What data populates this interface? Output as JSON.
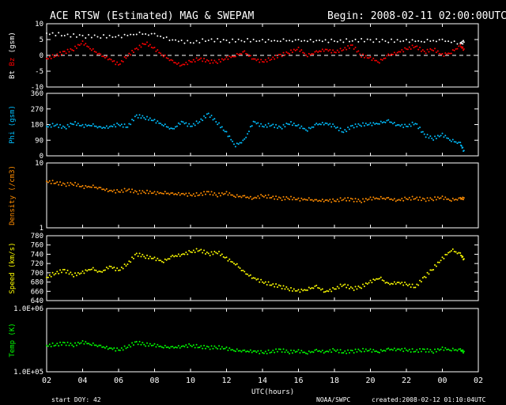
{
  "header": {
    "title": "ACE RTSW (Estimated) MAG & SWEPAM",
    "begin": "Begin: 2008-02-11 02:00:00UTC"
  },
  "footer": {
    "start_doy": "start DOY:  42",
    "credit": "NOAA/SWPC",
    "created": "created:2008-02-12 01:10:04UTC"
  },
  "colors": {
    "background": "#000000",
    "frame": "#ffffff",
    "bt": "#ffffff",
    "bz": "#ff0000",
    "phi": "#00bfff",
    "density": "#ff8c00",
    "speed": "#ffff00",
    "temp": "#00ff00"
  },
  "chart_data": [
    {
      "type": "scatter",
      "panel": "mag",
      "ylabel_parts": [
        "Bt",
        "Bz",
        "(gsm)"
      ],
      "ylim": [
        -10,
        10
      ],
      "yticks": [
        "10",
        "5",
        "0",
        "-5",
        "-10"
      ],
      "zero_line": "dashed",
      "series": [
        {
          "name": "Bt",
          "color": "#ffffff",
          "x": [
            2,
            3,
            4,
            5,
            6,
            7,
            8,
            9,
            10,
            11,
            12,
            13,
            14,
            15,
            16,
            17,
            18,
            19,
            20,
            21,
            22,
            23,
            24,
            25,
            25.2
          ],
          "y": [
            7,
            6.5,
            6,
            6,
            5.8,
            7,
            6.5,
            5,
            4,
            5,
            4.5,
            4.8,
            4.5,
            4.8,
            4.6,
            4.8,
            4.5,
            4.8,
            4.7,
            4.6,
            4.5,
            4.6,
            4.7,
            4.0,
            4.2
          ]
        },
        {
          "name": "Bz",
          "color": "#ff0000",
          "x": [
            2,
            2.5,
            3,
            3.5,
            4,
            4.5,
            5,
            5.5,
            6,
            6.5,
            7,
            7.5,
            8,
            8.5,
            9,
            9.5,
            10,
            10.5,
            11,
            11.5,
            12,
            12.5,
            13,
            13.5,
            14,
            14.5,
            15,
            15.5,
            16,
            16.5,
            17,
            17.5,
            18,
            18.5,
            19,
            19.5,
            20,
            20.5,
            21,
            21.5,
            22,
            22.5,
            23,
            23.5,
            24,
            24.5,
            25,
            25.2
          ],
          "y": [
            -1,
            0,
            1,
            2,
            4,
            2,
            0,
            -1,
            -3,
            0,
            2,
            4,
            2,
            0,
            -2,
            -3,
            -2,
            -1,
            -2,
            -2,
            -1,
            0,
            1,
            -1,
            -2,
            -1,
            0,
            1,
            2,
            0,
            1,
            2,
            1,
            2,
            3,
            0,
            -1,
            -2,
            0,
            1,
            2,
            3,
            1,
            2,
            0,
            1,
            3,
            2
          ]
        }
      ]
    },
    {
      "type": "scatter",
      "panel": "phi",
      "ylabel": "Phi (gsm)",
      "ylim": [
        0,
        360
      ],
      "yticks": [
        "360",
        "270",
        "180",
        "90",
        "0"
      ],
      "series": [
        {
          "name": "Phi",
          "color": "#00bfff",
          "x": [
            2,
            2.5,
            3,
            3.5,
            4,
            4.5,
            5,
            5.5,
            6,
            6.5,
            7,
            7.5,
            8,
            8.5,
            9,
            9.5,
            10,
            10.5,
            11,
            11.5,
            12,
            12.5,
            13,
            13.5,
            14,
            14.5,
            15,
            15.5,
            16,
            16.5,
            17,
            17.5,
            18,
            18.5,
            19,
            19.5,
            20,
            20.5,
            21,
            21.5,
            22,
            22.5,
            23,
            23.5,
            24,
            24.5,
            25,
            25.2
          ],
          "y": [
            170,
            180,
            160,
            190,
            170,
            180,
            160,
            170,
            180,
            170,
            230,
            220,
            200,
            180,
            150,
            200,
            170,
            200,
            240,
            190,
            130,
            60,
            90,
            200,
            170,
            180,
            160,
            190,
            170,
            150,
            180,
            190,
            170,
            140,
            170,
            180,
            180,
            190,
            200,
            180,
            170,
            190,
            120,
            100,
            120,
            90,
            70,
            30
          ]
        }
      ]
    },
    {
      "type": "scatter",
      "panel": "density",
      "ylabel": "Density (/cm3)",
      "yscale": "log",
      "ylim": [
        1,
        10
      ],
      "yticks": [
        "10",
        "1"
      ],
      "series": [
        {
          "name": "Density",
          "color": "#ff8c00",
          "x": [
            2,
            2.5,
            3,
            3.5,
            4,
            4.5,
            5,
            5.5,
            6,
            6.5,
            7,
            7.5,
            8,
            8.5,
            9,
            9.5,
            10,
            10.5,
            11,
            11.5,
            12,
            12.5,
            13,
            13.5,
            14,
            14.5,
            15,
            15.5,
            16,
            16.5,
            17,
            17.5,
            18,
            18.5,
            19,
            19.5,
            20,
            20.5,
            21,
            21.5,
            22,
            22.5,
            23,
            23.5,
            24,
            24.5,
            25,
            25.2
          ],
          "y": [
            5.2,
            5.0,
            4.6,
            4.8,
            4.2,
            4.4,
            4.0,
            3.8,
            3.6,
            3.9,
            3.5,
            3.6,
            3.4,
            3.5,
            3.3,
            3.4,
            3.2,
            3.3,
            3.5,
            3.2,
            3.4,
            3.1,
            3.0,
            2.9,
            3.1,
            3.0,
            2.8,
            2.9,
            2.7,
            2.8,
            2.6,
            2.7,
            2.6,
            2.8,
            2.7,
            2.6,
            2.8,
            2.9,
            2.8,
            2.7,
            2.8,
            2.9,
            2.7,
            2.8,
            2.9,
            2.7,
            2.8,
            2.9
          ]
        }
      ]
    },
    {
      "type": "scatter",
      "panel": "speed",
      "ylabel": "Speed (km/s)",
      "ylim": [
        640,
        780
      ],
      "yticks": [
        "780",
        "760",
        "740",
        "720",
        "700",
        "680",
        "660",
        "640"
      ],
      "series": [
        {
          "name": "Speed",
          "color": "#ffff00",
          "x": [
            2,
            2.5,
            3,
            3.5,
            4,
            4.5,
            5,
            5.5,
            6,
            6.5,
            7,
            7.5,
            8,
            8.5,
            9,
            9.5,
            10,
            10.5,
            11,
            11.5,
            12,
            12.5,
            13,
            13.5,
            14,
            14.5,
            15,
            15.5,
            16,
            16.5,
            17,
            17.5,
            18,
            18.5,
            19,
            19.5,
            20,
            20.5,
            21,
            21.5,
            22,
            22.5,
            23,
            23.5,
            24,
            24.5,
            25,
            25.2
          ],
          "y": [
            690,
            700,
            705,
            695,
            700,
            710,
            700,
            715,
            705,
            720,
            740,
            735,
            730,
            725,
            735,
            740,
            745,
            750,
            740,
            745,
            730,
            720,
            700,
            690,
            680,
            675,
            670,
            665,
            660,
            665,
            670,
            660,
            665,
            675,
            665,
            670,
            680,
            690,
            675,
            680,
            675,
            670,
            690,
            710,
            730,
            750,
            740,
            730
          ]
        }
      ]
    },
    {
      "type": "scatter",
      "panel": "temp",
      "ylabel": "Temp (K)",
      "yscale": "log",
      "ylim": [
        100000,
        1000000
      ],
      "yticks": [
        "1.0E+06",
        "1.0E+05"
      ],
      "xlabel": "UTC(hours)",
      "xlim": [
        2,
        26
      ],
      "xticks": [
        "02",
        "04",
        "06",
        "08",
        "10",
        "12",
        "14",
        "16",
        "18",
        "20",
        "22",
        "00",
        "02"
      ],
      "series": [
        {
          "name": "Temp",
          "color": "#00ff00",
          "x": [
            2,
            2.5,
            3,
            3.5,
            4,
            4.5,
            5,
            5.5,
            6,
            6.5,
            7,
            7.5,
            8,
            8.5,
            9,
            9.5,
            10,
            10.5,
            11,
            11.5,
            12,
            12.5,
            13,
            13.5,
            14,
            14.5,
            15,
            15.5,
            16,
            16.5,
            17,
            17.5,
            18,
            18.5,
            19,
            19.5,
            20,
            20.5,
            21,
            21.5,
            22,
            22.5,
            23,
            23.5,
            24,
            24.5,
            25,
            25.2
          ],
          "y": [
            260000,
            270000,
            280000,
            265000,
            290000,
            275000,
            250000,
            240000,
            220000,
            250000,
            290000,
            270000,
            260000,
            250000,
            240000,
            255000,
            260000,
            250000,
            240000,
            245000,
            230000,
            220000,
            210000,
            215000,
            200000,
            210000,
            220000,
            205000,
            210000,
            200000,
            215000,
            210000,
            220000,
            205000,
            210000,
            220000,
            215000,
            210000,
            225000,
            230000,
            220000,
            215000,
            220000,
            210000,
            230000,
            225000,
            220000,
            210000
          ]
        }
      ]
    }
  ]
}
